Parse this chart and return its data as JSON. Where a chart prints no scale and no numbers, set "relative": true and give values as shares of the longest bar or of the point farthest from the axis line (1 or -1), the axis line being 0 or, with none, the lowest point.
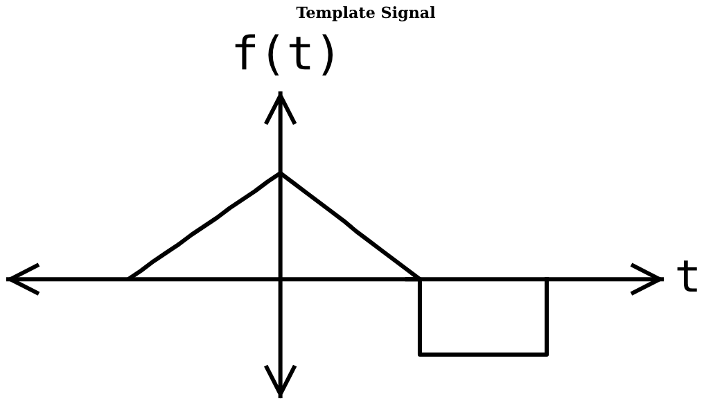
{
  "chart_data": {
    "type": "line",
    "title": "Template Signal",
    "xlabel": "t",
    "ylabel": "f(t)",
    "relative": true,
    "line_style": "solid",
    "categories": [
      null,
      null,
      null,
      null,
      null,
      null,
      null,
      null,
      null,
      null,
      null,
      null,
      null,
      null,
      null,
      null,
      null,
      null,
      null,
      null,
      null,
      null,
      null,
      null,
      null,
      null,
      null,
      null,
      null,
      null,
      null,
      null,
      null,
      null
    ],
    "series": [
      {
        "color": "#000000",
        "values": [
          0,
          0.08,
          0.17,
          0.25,
          0.33,
          0.42,
          0.5,
          0.58,
          0.67,
          0.75,
          0.83,
          0.92,
          1,
          0.91,
          0.82,
          0.73,
          0.64,
          0.55,
          0.45,
          0.36,
          0.27,
          0.18,
          0.09,
          0,
          null,
          null,
          null,
          null,
          null,
          null,
          null,
          null,
          null,
          null
        ]
      },
      {
        "type": "step",
        "color": "#000000",
        "values": [
          null,
          null,
          null,
          null,
          null,
          null,
          null,
          null,
          null,
          null,
          null,
          null,
          null,
          null,
          null,
          null,
          null,
          null,
          null,
          null,
          null,
          null,
          0,
          -0.71,
          -0.71,
          -0.71,
          -0.71,
          -0.71,
          -0.71,
          -0.71,
          -0.71,
          -0.71,
          -0.71,
          0
        ]
      }
    ]
  }
}
